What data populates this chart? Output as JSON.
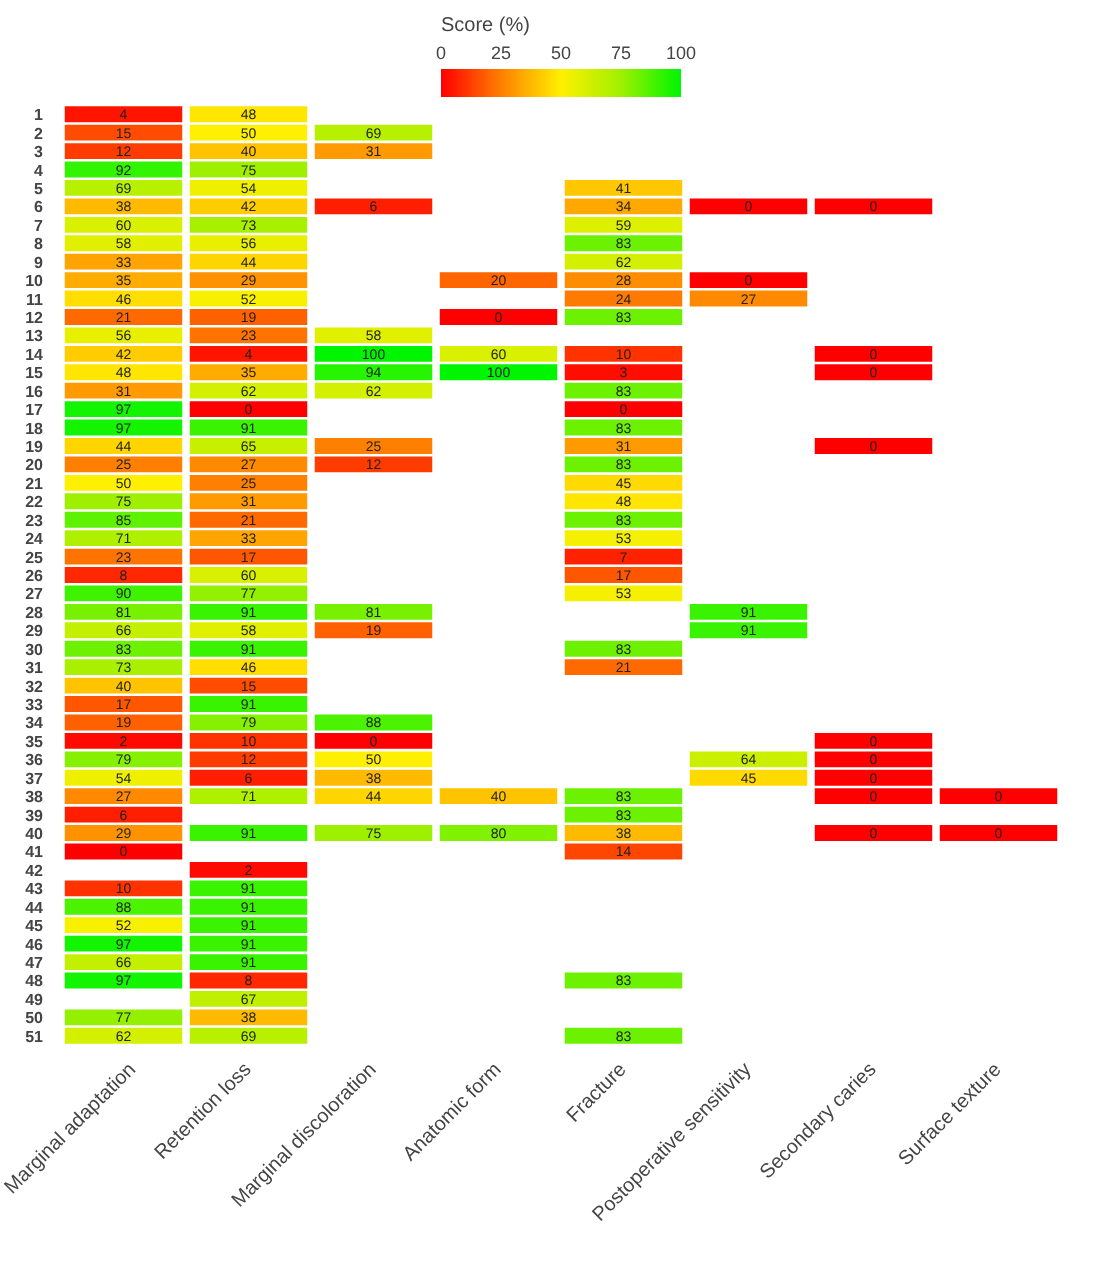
{
  "chart_data": {
    "type": "heatmap",
    "clabel": "Score (%)",
    "clim": [
      0,
      100
    ],
    "cticks": [
      0,
      25,
      50,
      75,
      100
    ],
    "data_labels": true,
    "categories": [
      "Marginal adaptation",
      "Retention loss",
      "Marginal discoloration",
      "Anatomic form",
      "Fracture",
      "Postoperative sensitivity",
      "Secondary caries",
      "Surface texture"
    ],
    "y_categories": [
      "1",
      "2",
      "3",
      "4",
      "5",
      "6",
      "7",
      "8",
      "9",
      "10",
      "11",
      "12",
      "13",
      "14",
      "15",
      "16",
      "17",
      "18",
      "19",
      "20",
      "21",
      "22",
      "23",
      "24",
      "25",
      "26",
      "27",
      "28",
      "29",
      "30",
      "31",
      "32",
      "33",
      "34",
      "35",
      "36",
      "37",
      "38",
      "39",
      "40",
      "41",
      "42",
      "43",
      "44",
      "45",
      "46",
      "47",
      "48",
      "49",
      "50",
      "51"
    ],
    "cells": [
      [
        4,
        48,
        null,
        null,
        null,
        null,
        null,
        null
      ],
      [
        15,
        50,
        69,
        null,
        null,
        null,
        null,
        null
      ],
      [
        12,
        40,
        31,
        null,
        null,
        null,
        null,
        null
      ],
      [
        92,
        75,
        null,
        null,
        null,
        null,
        null,
        null
      ],
      [
        69,
        54,
        null,
        null,
        41,
        null,
        null,
        null
      ],
      [
        38,
        42,
        6,
        null,
        34,
        0,
        0,
        null
      ],
      [
        60,
        73,
        null,
        null,
        59,
        null,
        null,
        null
      ],
      [
        58,
        56,
        null,
        null,
        83,
        null,
        null,
        null
      ],
      [
        33,
        44,
        null,
        null,
        62,
        null,
        null,
        null
      ],
      [
        35,
        29,
        null,
        20,
        28,
        0,
        null,
        null
      ],
      [
        46,
        52,
        null,
        null,
        24,
        27,
        null,
        null
      ],
      [
        21,
        19,
        null,
        0,
        83,
        null,
        null,
        null
      ],
      [
        56,
        23,
        58,
        null,
        null,
        null,
        null,
        null
      ],
      [
        42,
        4,
        100,
        60,
        10,
        null,
        0,
        null
      ],
      [
        48,
        35,
        94,
        100,
        3,
        null,
        0,
        null
      ],
      [
        31,
        62,
        62,
        null,
        83,
        null,
        null,
        null
      ],
      [
        97,
        0,
        null,
        null,
        0,
        null,
        null,
        null
      ],
      [
        97,
        91,
        null,
        null,
        83,
        null,
        null,
        null
      ],
      [
        44,
        65,
        25,
        null,
        31,
        null,
        0,
        null
      ],
      [
        25,
        27,
        12,
        null,
        83,
        null,
        null,
        null
      ],
      [
        50,
        25,
        null,
        null,
        45,
        null,
        null,
        null
      ],
      [
        75,
        31,
        null,
        null,
        48,
        null,
        null,
        null
      ],
      [
        85,
        21,
        null,
        null,
        83,
        null,
        null,
        null
      ],
      [
        71,
        33,
        null,
        null,
        53,
        null,
        null,
        null
      ],
      [
        23,
        17,
        null,
        null,
        7,
        null,
        null,
        null
      ],
      [
        8,
        60,
        null,
        null,
        17,
        null,
        null,
        null
      ],
      [
        90,
        77,
        null,
        null,
        53,
        null,
        null,
        null
      ],
      [
        81,
        91,
        81,
        null,
        null,
        91,
        null,
        null
      ],
      [
        66,
        58,
        19,
        null,
        null,
        91,
        null,
        null
      ],
      [
        83,
        91,
        null,
        null,
        83,
        null,
        null,
        null
      ],
      [
        73,
        46,
        null,
        null,
        21,
        null,
        null,
        null
      ],
      [
        40,
        15,
        null,
        null,
        null,
        null,
        null,
        null
      ],
      [
        17,
        91,
        null,
        null,
        null,
        null,
        null,
        null
      ],
      [
        19,
        79,
        88,
        null,
        null,
        null,
        null,
        null
      ],
      [
        2,
        10,
        0,
        null,
        null,
        null,
        0,
        null
      ],
      [
        79,
        12,
        50,
        null,
        null,
        64,
        0,
        null
      ],
      [
        54,
        6,
        38,
        null,
        null,
        45,
        0,
        null
      ],
      [
        27,
        71,
        44,
        40,
        83,
        null,
        0,
        0
      ],
      [
        6,
        null,
        null,
        null,
        83,
        null,
        null,
        null
      ],
      [
        29,
        91,
        75,
        80,
        38,
        null,
        0,
        0
      ],
      [
        0,
        null,
        null,
        null,
        14,
        null,
        null,
        null
      ],
      [
        null,
        2,
        null,
        null,
        null,
        null,
        null,
        null
      ],
      [
        10,
        91,
        null,
        null,
        null,
        null,
        null,
        null
      ],
      [
        88,
        91,
        null,
        null,
        null,
        null,
        null,
        null
      ],
      [
        52,
        91,
        null,
        null,
        null,
        null,
        null,
        null
      ],
      [
        97,
        91,
        null,
        null,
        null,
        null,
        null,
        null
      ],
      [
        66,
        91,
        null,
        null,
        null,
        null,
        null,
        null
      ],
      [
        97,
        8,
        null,
        null,
        83,
        null,
        null,
        null
      ],
      [
        null,
        67,
        null,
        null,
        null,
        null,
        null,
        null
      ],
      [
        77,
        38,
        null,
        null,
        null,
        null,
        null,
        null
      ],
      [
        62,
        69,
        null,
        null,
        83,
        null,
        null,
        null
      ]
    ]
  }
}
